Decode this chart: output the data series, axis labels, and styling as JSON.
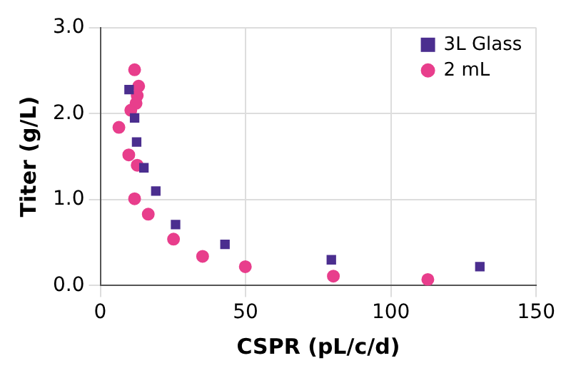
{
  "chart_data": {
    "type": "scatter",
    "xlabel": "CSPR (pL/c/d)",
    "ylabel": "Titer (g/L)",
    "xlim": [
      0,
      150
    ],
    "xticks": [
      0,
      50,
      100,
      150
    ],
    "ylim": [
      0,
      3
    ],
    "yticks": [
      {
        "value": 0,
        "label": "0.0"
      },
      {
        "value": 1,
        "label": "1.0"
      },
      {
        "value": 2,
        "label": "2.0"
      },
      {
        "value": 3,
        "label": "3.0"
      }
    ],
    "grid": true,
    "legend": "top right",
    "series": [
      {
        "name": "3L Glass",
        "color": "#4b2e8f",
        "marker": "square",
        "x": [
          9.9,
          11.8,
          12.5,
          15.0,
          19.1,
          25.9,
          42.9,
          79.5,
          130.6
        ],
        "values": [
          2.28,
          1.95,
          1.67,
          1.37,
          1.1,
          0.71,
          0.48,
          0.3,
          0.22
        ]
      },
      {
        "name": "2 mL",
        "color": "#e83e8c",
        "marker": "circle",
        "x": [
          11.8,
          13.2,
          12.7,
          12.3,
          10.5,
          6.4,
          9.8,
          12.7,
          11.8,
          16.5,
          25.2,
          35.2,
          49.9,
          80.2,
          112.7
        ],
        "values": [
          2.51,
          2.32,
          2.21,
          2.12,
          2.04,
          1.84,
          1.52,
          1.4,
          1.01,
          0.83,
          0.54,
          0.34,
          0.22,
          0.11,
          0.07
        ]
      }
    ]
  }
}
